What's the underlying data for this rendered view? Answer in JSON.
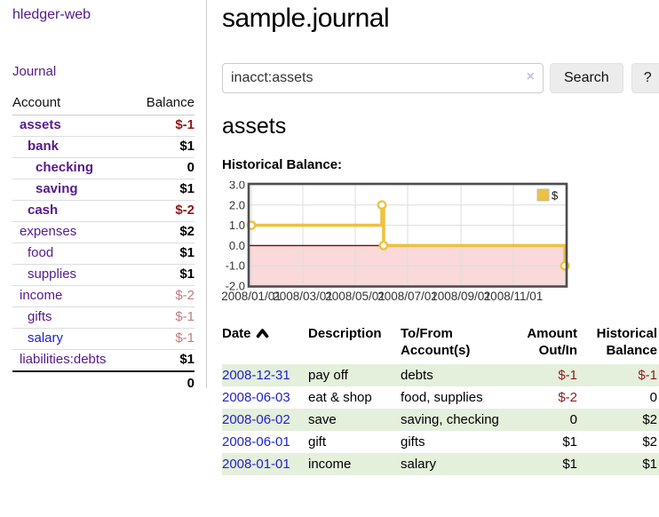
{
  "sidebar": {
    "app_title": "hledger-web",
    "journal_link": "Journal",
    "accounts_table": {
      "headers": [
        "Account",
        "Balance"
      ],
      "rows": [
        {
          "account": "assets",
          "indent": 0,
          "bold": true,
          "link": "visited",
          "balance": "$-1",
          "neg": "strong"
        },
        {
          "account": "bank",
          "indent": 1,
          "bold": true,
          "link": "visited",
          "balance": "$1",
          "neg": null
        },
        {
          "account": "checking",
          "indent": 2,
          "bold": true,
          "link": "visited",
          "balance": "0",
          "neg": null
        },
        {
          "account": "saving",
          "indent": 2,
          "bold": true,
          "link": "visited",
          "balance": "$1",
          "neg": null
        },
        {
          "account": "cash",
          "indent": 1,
          "bold": true,
          "link": "visited",
          "balance": "$-2",
          "neg": "strong"
        },
        {
          "account": "expenses",
          "indent": 0,
          "bold": false,
          "link": "visited",
          "balance": "$2",
          "neg": null
        },
        {
          "account": "food",
          "indent": 1,
          "bold": false,
          "link": "visited",
          "balance": "$1",
          "neg": null
        },
        {
          "account": "supplies",
          "indent": 1,
          "bold": false,
          "link": "visited",
          "balance": "$1",
          "neg": null
        },
        {
          "account": "income",
          "indent": 0,
          "bold": false,
          "link": "visited",
          "balance": "$-2",
          "neg": "soft"
        },
        {
          "account": "gifts",
          "indent": 1,
          "bold": false,
          "link": "visited",
          "balance": "$-1",
          "neg": "soft"
        },
        {
          "account": "salary",
          "indent": 1,
          "bold": false,
          "link": "blue",
          "balance": "$-1",
          "neg": "soft"
        },
        {
          "account": "liabilities:debts",
          "indent": 0,
          "bold": false,
          "link": "visited",
          "balance": "$1",
          "neg": null
        }
      ],
      "total": "0"
    }
  },
  "header": {
    "title": "sample.journal"
  },
  "search": {
    "value": "inacct:assets",
    "clear_icon": "×",
    "button_label": "Search",
    "help_label": "?"
  },
  "account_page": {
    "heading": "assets",
    "chart_label": "Historical Balance:"
  },
  "chart_data": {
    "type": "line",
    "step": true,
    "title": "Historical Balance:",
    "legend_position": "top-right",
    "x_range": [
      "2008-01-01",
      "2008-12-31"
    ],
    "ylim": [
      -2,
      3
    ],
    "y_ticks": [
      "3.0",
      "2.0",
      "1.0",
      "0.0",
      "-1.0",
      "-2.0"
    ],
    "y_tick_values": [
      3,
      2,
      1,
      0,
      -1,
      -2
    ],
    "x_ticks": [
      "2008/01/01",
      "2008/03/01",
      "2008/05/01",
      "2008/07/01",
      "2008/09/01",
      "2008/11/01"
    ],
    "series": [
      {
        "name": "$",
        "color": "#edc240",
        "points": [
          {
            "x": "2008-01-01",
            "y": 1
          },
          {
            "x": "2008-06-01",
            "y": 2
          },
          {
            "x": "2008-06-03",
            "y": 0
          },
          {
            "x": "2008-12-31",
            "y": -1
          }
        ]
      }
    ],
    "negative_region_color": "#f9d9d9",
    "zero_line_color": "#8b0000",
    "grid": true
  },
  "register_table": {
    "headers": {
      "date": "Date",
      "description": "Description",
      "accounts": "To/From Account(s)",
      "amount": "Amount Out/In",
      "balance": "Historical Balance"
    },
    "sort": {
      "column": "date",
      "direction": "ascending"
    },
    "rows": [
      {
        "date": "2008-12-31",
        "description": "pay off",
        "accounts": "debts",
        "amount": "$-1",
        "amount_neg": true,
        "balance": "$-1",
        "balance_neg": true
      },
      {
        "date": "2008-06-03",
        "description": "eat & shop",
        "accounts": "food, supplies",
        "amount": "$-2",
        "amount_neg": true,
        "balance": "0",
        "balance_neg": false
      },
      {
        "date": "2008-06-02",
        "description": "save",
        "accounts": "saving, checking",
        "amount": "0",
        "amount_neg": false,
        "balance": "$2",
        "balance_neg": false
      },
      {
        "date": "2008-06-01",
        "description": "gift",
        "accounts": "gifts",
        "amount": "$1",
        "amount_neg": false,
        "balance": "$2",
        "balance_neg": false
      },
      {
        "date": "2008-01-01",
        "description": "income",
        "accounts": "salary",
        "amount": "$1",
        "amount_neg": false,
        "balance": "$1",
        "balance_neg": false
      }
    ]
  },
  "colors": {
    "link_purple": "#551a8b",
    "link_blue": "#2222cc",
    "negative_strong": "#8f1a1a",
    "negative_soft": "#c47c7c",
    "row_stripe_green": "#e4efdc",
    "chart_line_gold": "#edc240",
    "chart_negative_pink": "#f9d9d9",
    "chart_zero_line": "#8b0000"
  }
}
